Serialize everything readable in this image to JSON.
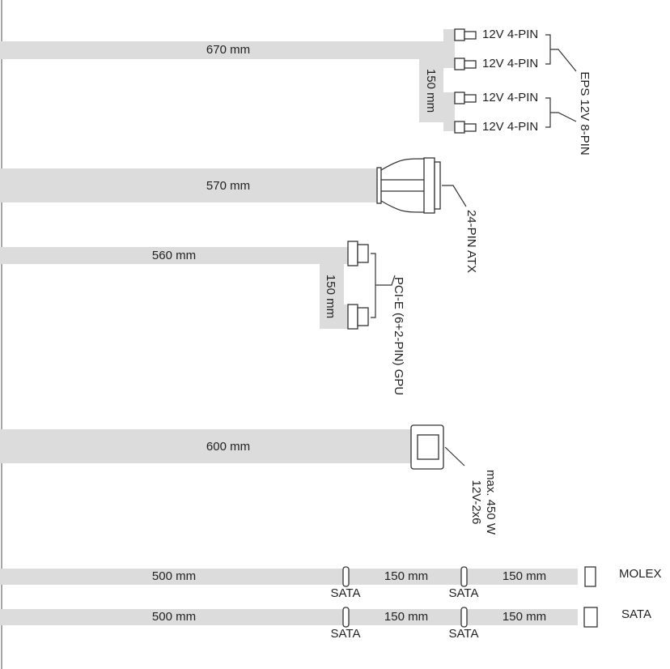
{
  "cables": [
    {
      "length": "670 mm",
      "branch_length": "150 mm",
      "connectors": [
        "12V 4-PIN",
        "12V 4-PIN",
        "12V 4-PIN",
        "12V 4-PIN"
      ],
      "label": "EPS 12V 8-PIN"
    },
    {
      "length": "570 mm",
      "label": "24-PIN ATX"
    },
    {
      "length": "560 mm",
      "branch_length": "150 mm",
      "label": "PCI-E (6+2-PIN) GPU"
    },
    {
      "length": "600 mm",
      "label": [
        "12V-2x6",
        "max. 450 W"
      ]
    }
  ],
  "chains": [
    {
      "segments": [
        "500 mm",
        "150 mm",
        "150 mm"
      ],
      "taps": [
        "SATA",
        "SATA"
      ],
      "end": "MOLEX"
    },
    {
      "segments": [
        "500 mm",
        "150 mm",
        "150 mm"
      ],
      "taps": [
        "SATA",
        "SATA"
      ],
      "end": "SATA"
    }
  ]
}
